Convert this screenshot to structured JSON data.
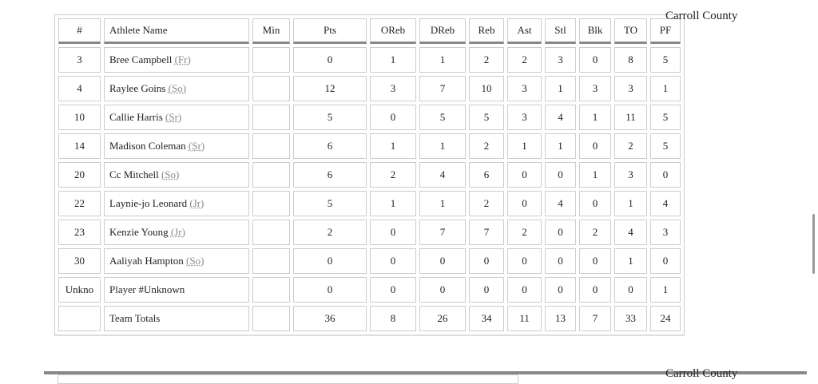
{
  "team_name": "Carroll County",
  "next_team_name": "Carroll County",
  "columns": [
    "#",
    "Athlete Name",
    "Min",
    "Pts",
    "OReb",
    "DReb",
    "Reb",
    "Ast",
    "Stl",
    "Blk",
    "TO",
    "PF"
  ],
  "rows": [
    {
      "num": "3",
      "name": "Bree Campbell",
      "cls": "(Fr)",
      "min": "",
      "stats": [
        "0",
        "1",
        "1",
        "2",
        "2",
        "3",
        "0",
        "8",
        "5"
      ]
    },
    {
      "num": "4",
      "name": "Raylee Goins",
      "cls": "(So)",
      "min": "",
      "stats": [
        "12",
        "3",
        "7",
        "10",
        "3",
        "1",
        "3",
        "3",
        "1"
      ]
    },
    {
      "num": "10",
      "name": "Callie Harris",
      "cls": "(Sr)",
      "min": "",
      "stats": [
        "5",
        "0",
        "5",
        "5",
        "3",
        "4",
        "1",
        "11",
        "5"
      ]
    },
    {
      "num": "14",
      "name": "Madison Coleman",
      "cls": "(Sr)",
      "min": "",
      "stats": [
        "6",
        "1",
        "1",
        "2",
        "1",
        "1",
        "0",
        "2",
        "5"
      ]
    },
    {
      "num": "20",
      "name": "Cc Mitchell",
      "cls": "(So)",
      "min": "",
      "stats": [
        "6",
        "2",
        "4",
        "6",
        "0",
        "0",
        "1",
        "3",
        "0"
      ]
    },
    {
      "num": "22",
      "name": "Laynie-jo Leonard",
      "cls": "(Jr)",
      "min": "",
      "stats": [
        "5",
        "1",
        "1",
        "2",
        "0",
        "4",
        "0",
        "1",
        "4"
      ]
    },
    {
      "num": "23",
      "name": "Kenzie Young",
      "cls": "(Jr)",
      "min": "",
      "stats": [
        "2",
        "0",
        "7",
        "7",
        "2",
        "0",
        "2",
        "4",
        "3"
      ]
    },
    {
      "num": "30",
      "name": "Aaliyah Hampton",
      "cls": "(So)",
      "min": "",
      "stats": [
        "0",
        "0",
        "0",
        "0",
        "0",
        "0",
        "0",
        "1",
        "0"
      ]
    },
    {
      "num": "Unkno",
      "name": "Player #Unknown",
      "cls": "",
      "min": "",
      "stats": [
        "0",
        "0",
        "0",
        "0",
        "0",
        "0",
        "0",
        "0",
        "1"
      ]
    },
    {
      "num": "",
      "name": "Team Totals",
      "cls": "",
      "min": "",
      "stats": [
        "36",
        "8",
        "26",
        "34",
        "11",
        "13",
        "7",
        "33",
        "24"
      ]
    }
  ]
}
